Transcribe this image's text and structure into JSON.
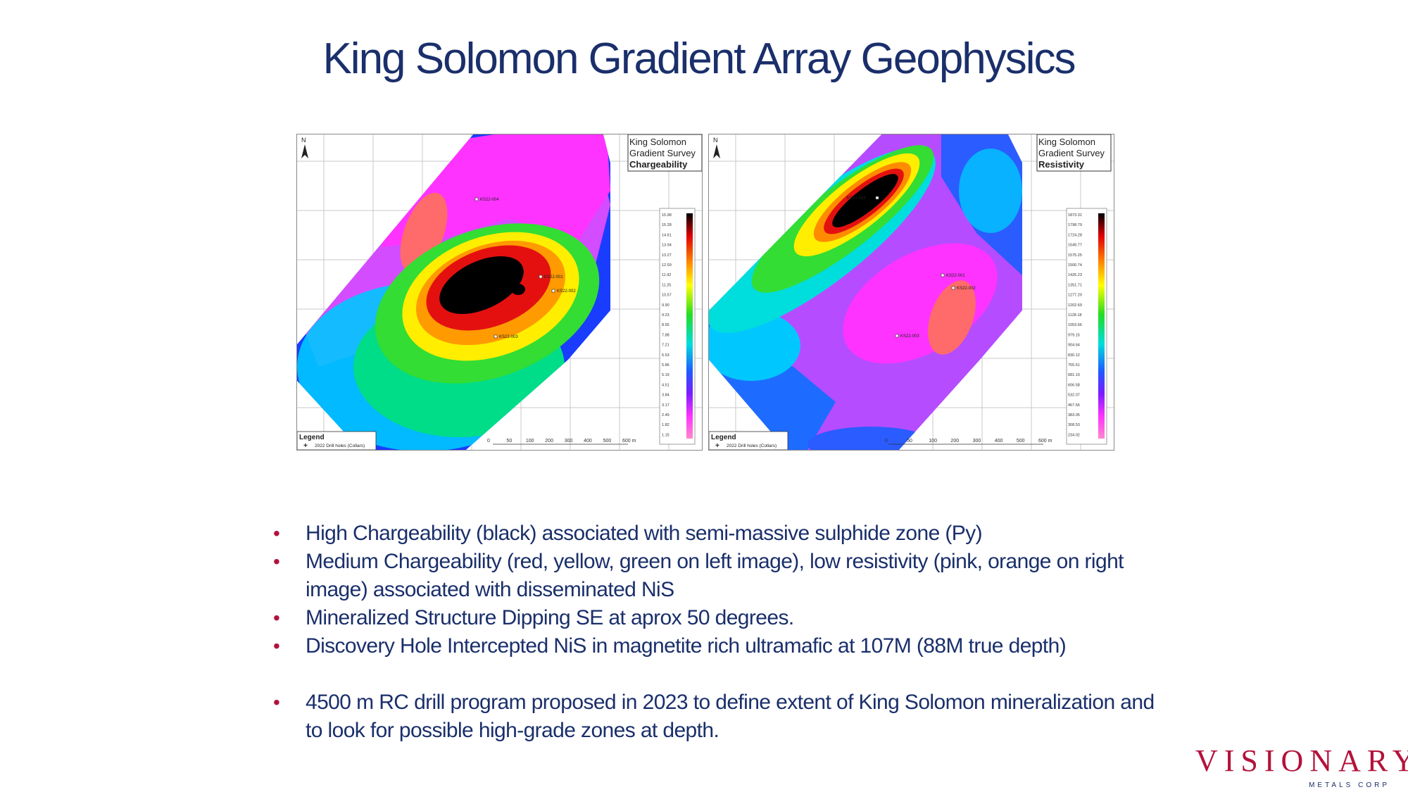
{
  "slide": {
    "title": "King Solomon Gradient Array Geophysics"
  },
  "maps": [
    {
      "box_title_1": "King Solomon",
      "box_title_2": "Gradient Survey",
      "box_title_3": "Chargeability",
      "north": "N",
      "holes": [
        "KS22-004",
        "KS22-001",
        "KS22-002",
        "KS22-003"
      ],
      "scale_labels": [
        "0",
        "50",
        "100",
        "200",
        "300",
        "400",
        "500",
        "600 m"
      ],
      "color_scale": [
        "15.98",
        "15.28",
        "14.61",
        "13.94",
        "13.27",
        "12.59",
        "11.92",
        "11.25",
        "10.57",
        "9.90",
        "9.23",
        "8.55",
        "7.88",
        "7.21",
        "6.53",
        "5.86",
        "5.19",
        "4.51",
        "3.84",
        "3.17",
        "2.49",
        "1.82",
        "1.15"
      ],
      "legend_title": "Legend",
      "legend_item": "2022 Drill holes (Collars)"
    },
    {
      "box_title_1": "King Solomon",
      "box_title_2": "Gradient Survey",
      "box_title_3": "Resistivity",
      "north": "N",
      "holes": [
        "KS22-004",
        "KS22-001",
        "KS22-002",
        "KS22-003"
      ],
      "scale_labels": [
        "0",
        "50",
        "100",
        "200",
        "300",
        "400",
        "500",
        "600 m"
      ],
      "color_scale": [
        "1873.31",
        "1798.79",
        "1724.28",
        "1649.77",
        "1575.25",
        "1500.74",
        "1426.23",
        "1351.71",
        "1277.20",
        "1202.69",
        "1128.18",
        "1053.66",
        "979.15",
        "904.64",
        "830.12",
        "755.61",
        "681.10",
        "606.58",
        "532.07",
        "457.56",
        "383.05",
        "308.53",
        "234.02"
      ],
      "legend_title": "Legend",
      "legend_item": "2022 Drill holes (Collars)"
    }
  ],
  "bullets": [
    "High Chargeability (black) associated with semi-massive sulphide zone (Py)",
    "Medium Chargeability (red, yellow, green on left image), low resistivity (pink, orange on right image) associated with disseminated NiS",
    "Mineralized Structure Dipping SE at aprox 50 degrees.",
    "Discovery Hole Intercepted NiS in magnetite rich ultramafic at 107M (88M true depth)",
    "4500 m RC drill program proposed in 2023 to define extent of King Solomon mineralization and to look for possible high-grade zones at depth."
  ],
  "logo": {
    "word": "VISIONARY",
    "sub": "METALS CORP"
  },
  "colors": {
    "title": "#1a2f6b",
    "bullet_dot": "#b3123b",
    "logo": "#b3123b"
  }
}
